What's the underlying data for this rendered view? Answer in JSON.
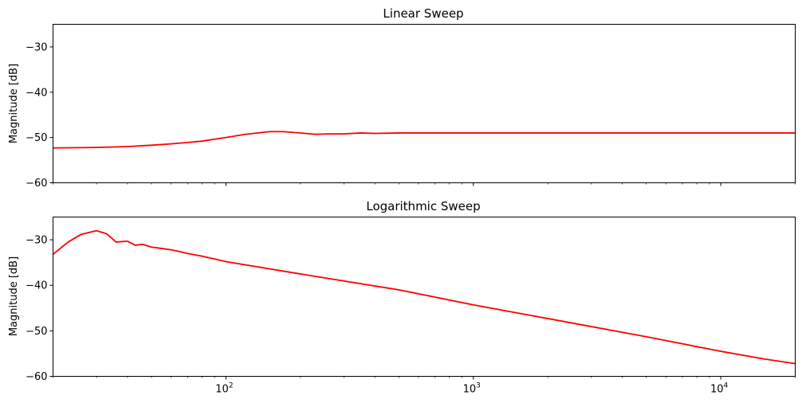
{
  "chart_data": [
    {
      "type": "line",
      "title": "Linear Sweep",
      "xlabel": "",
      "ylabel": "Magnitude [dB]",
      "xscale": "log",
      "xlim": [
        20,
        20000
      ],
      "ylim": [
        -60,
        -25
      ],
      "yticks": [
        -30,
        -40,
        -50,
        -60
      ],
      "ytick_labels": [
        "−30",
        "−40",
        "−50",
        "−60"
      ],
      "x_tick_labels_shown": false,
      "grid": false,
      "line_color": "#ff0000",
      "series": [
        {
          "x": [
            20,
            30,
            40,
            50,
            60,
            70,
            80,
            100,
            120,
            150,
            170,
            200,
            230,
            260,
            300,
            350,
            400,
            500,
            700,
            1000,
            2000,
            5000,
            10000,
            15000,
            19000,
            20000
          ],
          "y": [
            -52.3,
            -52.2,
            -52.0,
            -51.7,
            -51.4,
            -51.1,
            -50.8,
            -50.0,
            -49.3,
            -48.7,
            -48.7,
            -49.0,
            -49.3,
            -49.2,
            -49.2,
            -49.0,
            -49.1,
            -49.0,
            -49.0,
            -49.0,
            -49.0,
            -49.0,
            -49.0,
            -49.0,
            -49.0,
            -49.0
          ]
        }
      ]
    },
    {
      "type": "line",
      "title": "Logarithmic Sweep",
      "xlabel": "",
      "ylabel": "Magnitude [dB]",
      "xscale": "log",
      "xlim": [
        20,
        20000
      ],
      "ylim": [
        -60,
        -25
      ],
      "xticks": [
        100,
        1000,
        10000
      ],
      "xtick_labels": [
        "10",
        "10",
        "10"
      ],
      "xtick_exponents": [
        "2",
        "3",
        "4"
      ],
      "yticks": [
        -30,
        -40,
        -50,
        -60
      ],
      "ytick_labels": [
        "−30",
        "−40",
        "−50",
        "−60"
      ],
      "grid": false,
      "line_color": "#ff0000",
      "series": [
        {
          "x": [
            20,
            23,
            26,
            30,
            33,
            36,
            40,
            43,
            46,
            50,
            55,
            60,
            65,
            70,
            80,
            90,
            100,
            200,
            500,
            1000,
            2000,
            5000,
            10000,
            15000,
            20000
          ],
          "y": [
            -33.2,
            -30.5,
            -28.8,
            -28.0,
            -28.7,
            -30.5,
            -30.3,
            -31.2,
            -31.0,
            -31.6,
            -31.9,
            -32.2,
            -32.6,
            -33.0,
            -33.6,
            -34.2,
            -34.8,
            -37.5,
            -41.0,
            -44.3,
            -47.3,
            -51.3,
            -54.5,
            -56.2,
            -57.2
          ]
        }
      ]
    }
  ]
}
